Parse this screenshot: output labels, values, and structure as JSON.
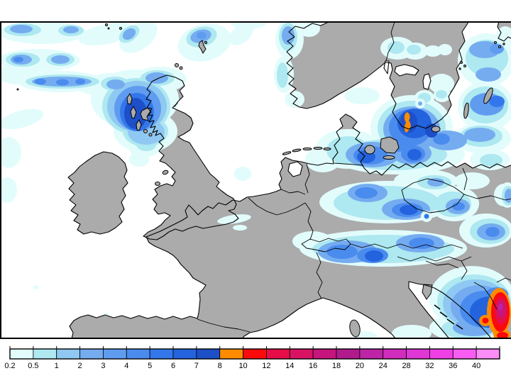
{
  "figure": {
    "kind": "precipitation-forecast-map",
    "region": "Europe and North Atlantic",
    "background": "#FFFFFF"
  },
  "chart_data": {
    "type": "heatmap",
    "subtype": "filled-contour precipitation map",
    "legend": {
      "position": "bottom",
      "values": [
        0.2,
        0.5,
        1,
        2,
        3,
        4,
        5,
        6,
        7,
        8,
        10,
        12,
        14,
        16,
        18,
        20,
        24,
        28,
        32,
        36,
        40
      ],
      "colors": [
        "#E2FCFC",
        "#AEE8F0",
        "#8FC8F2",
        "#75ACF0",
        "#5F9CF0",
        "#4A8BEE",
        "#3377EA",
        "#2363DE",
        "#1C4FC8",
        "#FF8C00",
        "#FA0A0A",
        "#E60D48",
        "#D81364",
        "#C6157C",
        "#B01A8C",
        "#BD24A6",
        "#D02CBE",
        "#E136D6",
        "#EF40E8",
        "#F95CF2",
        "#FC8CF8"
      ]
    },
    "map_colors": {
      "land": "#ABABAB",
      "sea": "#FFFFFF",
      "coastline": "#000000",
      "frame": "#000000"
    },
    "precip_features": [
      {
        "area": "North Atlantic bands west and north of Scotland",
        "max_level_mm": 5
      },
      {
        "area": "NW Scotland and Hebrides",
        "max_level_mm": 8
      },
      {
        "area": "Shetland area",
        "max_level_mm": 4
      },
      {
        "area": "Norwegian west coast",
        "max_level_mm": 4
      },
      {
        "area": "Oresund / Danish straits / southern Sweden",
        "max_level_mm": 10
      },
      {
        "area": "Baltic Sea east of Sweden",
        "max_level_mm": 6
      },
      {
        "area": "Northern Germany and Baltic coast",
        "max_level_mm": 8
      },
      {
        "area": "Central Germany to Czech border",
        "max_level_mm": 7
      },
      {
        "area": "Alps (Switzerland / Austria)",
        "max_level_mm": 8
      },
      {
        "area": "Slovakia / Hungary",
        "max_level_mm": 4
      },
      {
        "area": "Dinaric Alps / western Balkans",
        "max_level_mm": 24
      },
      {
        "area": "France, Spain, most of England",
        "max_level_mm": 0
      }
    ]
  }
}
